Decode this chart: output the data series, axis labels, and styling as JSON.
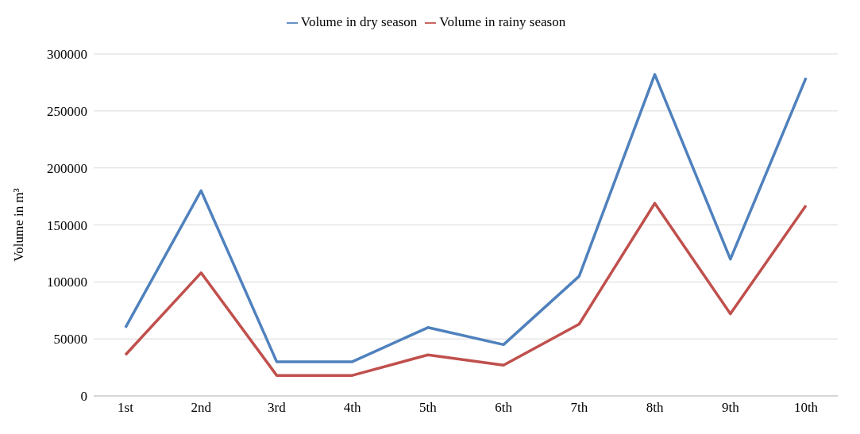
{
  "chart_data": {
    "type": "line",
    "ylabel": "Volume in m³",
    "categories": [
      "1st",
      "2nd",
      "3rd",
      "4th",
      "5th",
      "6th",
      "7th",
      "8th",
      "9th",
      "10th"
    ],
    "series": [
      {
        "name": "Volume in dry season",
        "color": "#4f81bd",
        "values": [
          60000,
          180000,
          30000,
          30000,
          60000,
          45000,
          105000,
          282000,
          120000,
          279000
        ]
      },
      {
        "name": "Volume in rainy season",
        "color": "#c0504d",
        "values": [
          36000,
          108000,
          18000,
          18000,
          36000,
          27000,
          63000,
          169000,
          72000,
          167000
        ]
      }
    ],
    "ylim": [
      0,
      300000
    ],
    "yticks": [
      0,
      50000,
      100000,
      150000,
      200000,
      250000,
      300000
    ],
    "grid": "y",
    "legend": "top",
    "marker": "none",
    "line_style": "solid"
  }
}
